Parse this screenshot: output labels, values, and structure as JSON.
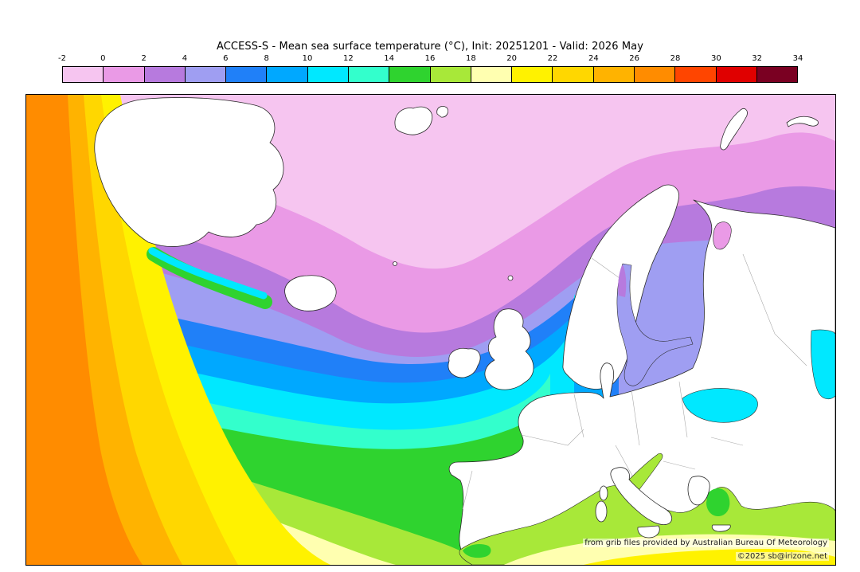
{
  "header": {
    "title": "ACCESS-S - Mean sea surface temperature (°C), Init: 20251201 - Valid: 2026 May"
  },
  "colorbar": {
    "tick_labels": [
      "-2",
      "0",
      "2",
      "4",
      "6",
      "8",
      "10",
      "12",
      "14",
      "16",
      "18",
      "20",
      "22",
      "24",
      "26",
      "28",
      "30",
      "32",
      "34"
    ],
    "segment_colors": [
      "#f6c5f0",
      "#ea9ae6",
      "#b77ade",
      "#9f9ef2",
      "#2080f8",
      "#00a8ff",
      "#00e8ff",
      "#33ffcc",
      "#2fd32f",
      "#a8e839",
      "#ffffb0",
      "#fff200",
      "#ffd700",
      "#ffb300",
      "#ff8c00",
      "#ff4500",
      "#e00000",
      "#7a0022"
    ]
  },
  "attribution": {
    "source_line": "from grib files provided by Australian Bureau Of Meteorology",
    "copyright_line": "©2025 sb@irizone.net"
  },
  "chart_data": {
    "type": "heatmap",
    "title": "ACCESS-S - Mean sea surface temperature (°C), Init: 20251201 - Valid: 2026 May",
    "field": "mean sea surface temperature",
    "units": "°C",
    "scale_ticks_c": [
      -2,
      0,
      2,
      4,
      6,
      8,
      10,
      12,
      14,
      16,
      18,
      20,
      22,
      24,
      26,
      28,
      30,
      32,
      34
    ],
    "legend_position": "top",
    "approx_readings": [
      {
        "region": "far west Atlantic (map left edge)",
        "temp_c": "26-28"
      },
      {
        "region": "southwest Atlantic bands toward center",
        "temp_c": "18-26"
      },
      {
        "region": "mid-Atlantic / Bay of Biscay",
        "temp_c": "12-16"
      },
      {
        "region": "English Channel / around UK and Ireland",
        "temp_c": "10-12"
      },
      {
        "region": "North Sea / Norwegian coast",
        "temp_c": "6-10"
      },
      {
        "region": "seas around Iceland and east of Greenland",
        "temp_c": "2-6"
      },
      {
        "region": "Arctic / Barents Sea (top of map)",
        "temp_c": "-2-2"
      },
      {
        "region": "Baltic Sea / Gulf of Bothnia",
        "temp_c": "2-6"
      },
      {
        "region": "Black Sea and Caspian Sea",
        "temp_c": "10-12"
      },
      {
        "region": "Mediterranean Sea",
        "temp_c": "14-20"
      }
    ]
  }
}
